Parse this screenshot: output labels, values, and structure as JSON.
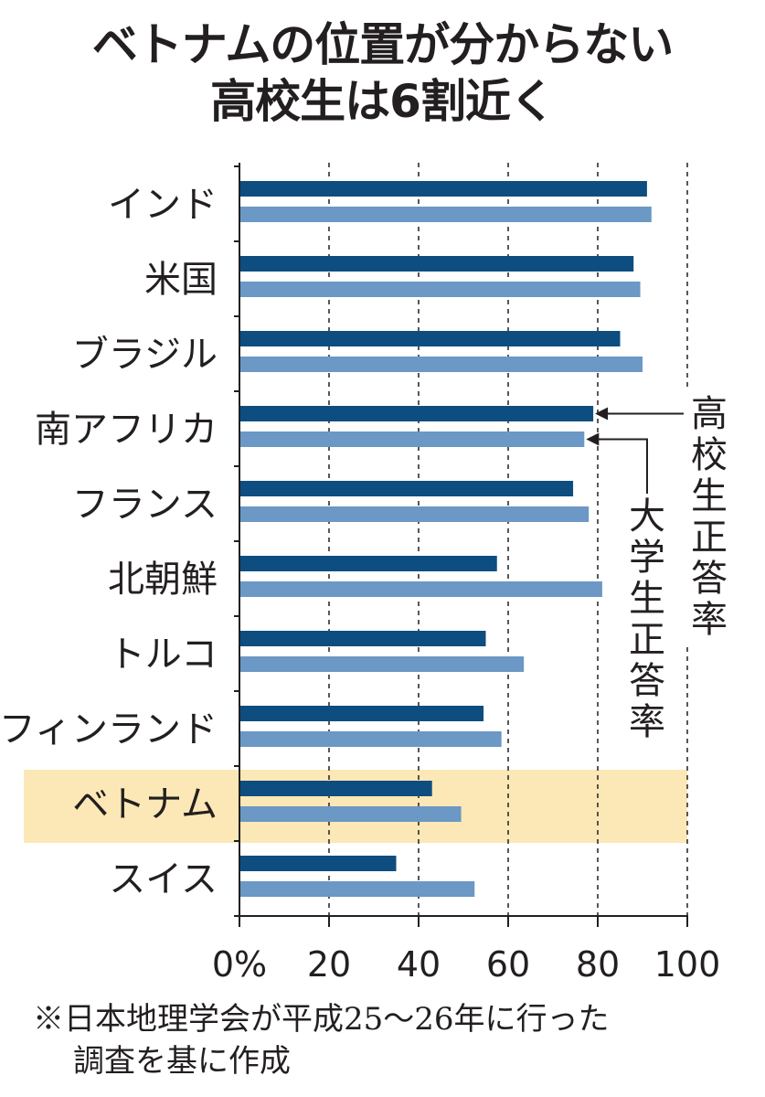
{
  "title": {
    "line1": "ベトナムの位置が分からない",
    "line2": "高校生は6割近く"
  },
  "chart_data": {
    "type": "bar",
    "orientation": "horizontal",
    "title": "ベトナムの位置が分からない 高校生は6割近く",
    "categories": [
      "インド",
      "米国",
      "ブラジル",
      "南アフリカ",
      "フランス",
      "北朝鮮",
      "トルコ",
      "フィンランド",
      "ベトナム",
      "スイス"
    ],
    "series": [
      {
        "name": "高校生正答率",
        "color": "#0e4d80",
        "values": [
          91,
          88,
          85,
          79,
          74.5,
          57.5,
          55,
          54.5,
          43,
          35
        ]
      },
      {
        "name": "大学生正答率",
        "color": "#6b98c4",
        "values": [
          92,
          89.5,
          90,
          77,
          78,
          81,
          63.5,
          58.5,
          49.5,
          52.5
        ]
      }
    ],
    "highlight_category": "ベトナム",
    "highlight_color": "#fbe8b6",
    "xlim": [
      0,
      100
    ],
    "xticks": [
      0,
      20,
      40,
      60,
      80,
      100
    ],
    "xtick_labels": [
      "0%",
      "20",
      "40",
      "60",
      "80",
      "100"
    ],
    "grid": "vertical dashed",
    "xlabel": "",
    "ylabel": ""
  },
  "footnote": {
    "line1": "※日本地理学会が平成25～26年に行った",
    "line2": "調査を基に作成"
  }
}
